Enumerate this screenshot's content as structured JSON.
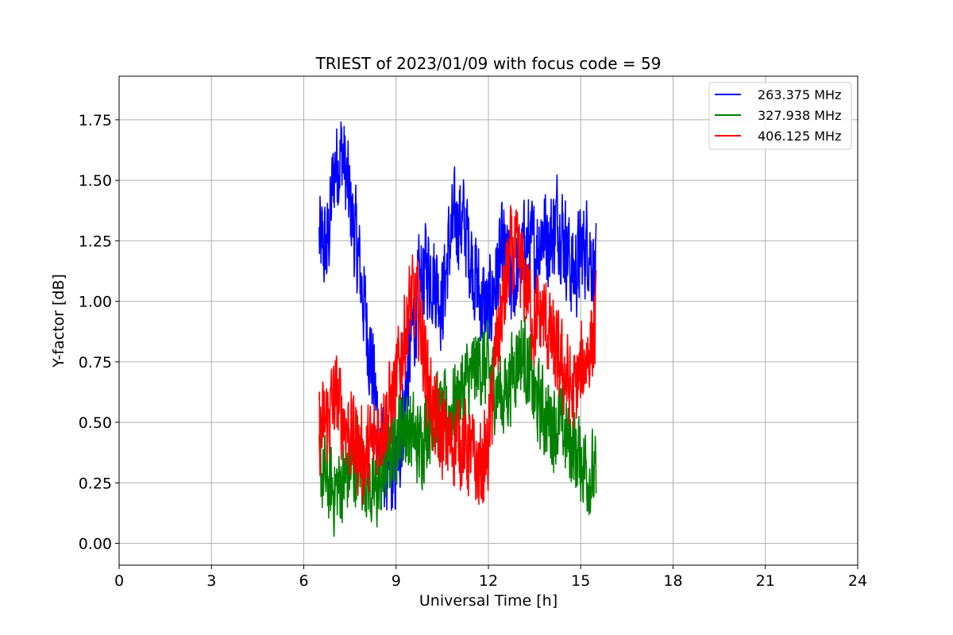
{
  "chart_data": {
    "type": "line",
    "title": "TRIEST of 2023/01/09 with focus code = 59",
    "xlabel": "Universal Time [h]",
    "ylabel": "Y-factor [dB]",
    "xlim": [
      0,
      24
    ],
    "ylim": [
      -0.09,
      1.93
    ],
    "xticks": [
      0,
      3,
      6,
      9,
      12,
      15,
      18,
      21,
      24
    ],
    "yticks": [
      0.0,
      0.25,
      0.5,
      0.75,
      1.0,
      1.25,
      1.5,
      1.75
    ],
    "xtick_labels": [
      "0",
      "3",
      "6",
      "9",
      "12",
      "15",
      "18",
      "21",
      "24"
    ],
    "ytick_labels": [
      "0.00",
      "0.25",
      "0.50",
      "0.75",
      "1.00",
      "1.25",
      "1.50",
      "1.75"
    ],
    "grid": true,
    "legend_position": "top-right",
    "series": [
      {
        "name": "263.375 MHz",
        "color": "#0000ff",
        "x": [
          6.5,
          6.75,
          7.0,
          7.25,
          7.5,
          7.75,
          8.0,
          8.25,
          8.5,
          8.75,
          9.0,
          9.25,
          9.5,
          9.75,
          10.0,
          10.25,
          10.5,
          10.75,
          11.0,
          11.25,
          11.5,
          11.75,
          12.0,
          12.25,
          12.5,
          12.75,
          13.0,
          13.25,
          13.5,
          13.75,
          14.0,
          14.25,
          14.5,
          14.75,
          15.0,
          15.25,
          15.5
        ],
        "y": [
          1.25,
          1.2,
          1.55,
          1.62,
          1.4,
          1.2,
          0.95,
          0.7,
          0.4,
          0.25,
          0.3,
          0.55,
          0.85,
          1.05,
          1.15,
          1.1,
          1.0,
          1.25,
          1.35,
          1.3,
          1.15,
          1.0,
          0.95,
          1.1,
          1.2,
          1.05,
          1.15,
          1.25,
          1.2,
          1.3,
          1.25,
          1.35,
          1.25,
          1.1,
          1.2,
          1.25,
          1.1
        ],
        "amplitude": 0.18
      },
      {
        "name": "327.938 MHz",
        "color": "#008000",
        "x": [
          6.5,
          6.75,
          7.0,
          7.25,
          7.5,
          7.75,
          8.0,
          8.25,
          8.5,
          8.75,
          9.0,
          9.25,
          9.5,
          9.75,
          10.0,
          10.25,
          10.5,
          10.75,
          11.0,
          11.25,
          11.5,
          11.75,
          12.0,
          12.25,
          12.5,
          12.75,
          13.0,
          13.25,
          13.5,
          13.75,
          14.0,
          14.25,
          14.5,
          14.75,
          15.0,
          15.25,
          15.5
        ],
        "y": [
          0.3,
          0.25,
          0.22,
          0.25,
          0.3,
          0.35,
          0.3,
          0.2,
          0.25,
          0.35,
          0.45,
          0.5,
          0.45,
          0.4,
          0.5,
          0.55,
          0.5,
          0.55,
          0.6,
          0.65,
          0.7,
          0.75,
          0.7,
          0.65,
          0.6,
          0.7,
          0.8,
          0.75,
          0.6,
          0.55,
          0.5,
          0.5,
          0.45,
          0.4,
          0.35,
          0.3,
          0.25
        ],
        "amplitude": 0.16
      },
      {
        "name": "406.125 MHz",
        "color": "#ff0000",
        "x": [
          6.5,
          6.75,
          7.0,
          7.25,
          7.5,
          7.75,
          8.0,
          8.25,
          8.5,
          8.75,
          9.0,
          9.25,
          9.5,
          9.75,
          10.0,
          10.25,
          10.5,
          10.75,
          11.0,
          11.25,
          11.5,
          11.75,
          12.0,
          12.25,
          12.5,
          12.75,
          13.0,
          13.25,
          13.5,
          13.75,
          14.0,
          14.25,
          14.5,
          14.75,
          15.0,
          15.25,
          15.5
        ],
        "y": [
          0.45,
          0.5,
          0.6,
          0.55,
          0.45,
          0.4,
          0.35,
          0.4,
          0.5,
          0.55,
          0.65,
          0.85,
          1.0,
          0.95,
          0.7,
          0.5,
          0.45,
          0.4,
          0.45,
          0.4,
          0.35,
          0.3,
          0.4,
          0.8,
          1.0,
          1.2,
          1.15,
          1.05,
          0.9,
          0.95,
          0.85,
          0.75,
          0.7,
          0.6,
          0.7,
          0.8,
          0.9
        ],
        "amplitude": 0.17
      }
    ]
  }
}
